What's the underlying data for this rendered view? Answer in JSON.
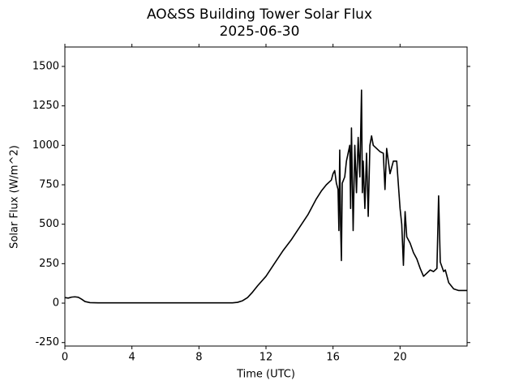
{
  "chart_data": {
    "type": "line",
    "title": "AO&SS Building Tower Solar Flux",
    "subtitle": "2025-06-30",
    "xlabel": "Time (UTC)",
    "ylabel": "Solar Flux (W/m^2)",
    "color": "#000000",
    "xlim": [
      0,
      24
    ],
    "xticks": [
      0,
      4,
      8,
      12,
      16,
      20
    ],
    "ylim": [
      -272,
      1623
    ],
    "yticks": [
      -250,
      0,
      250,
      500,
      750,
      1000,
      1250,
      1500
    ],
    "x": [
      0,
      0.2,
      0.4,
      0.6,
      0.8,
      1.0,
      1.2,
      1.5,
      2,
      4,
      6,
      8,
      10,
      10.3,
      10.6,
      10.9,
      11.2,
      11.5,
      12,
      12.5,
      13,
      13.5,
      14,
      14.5,
      15,
      15.3,
      15.6,
      15.9,
      16.0,
      16.1,
      16.2,
      16.3,
      16.35,
      16.4,
      16.45,
      16.5,
      16.55,
      16.7,
      16.8,
      16.9,
      17.0,
      17.05,
      17.1,
      17.2,
      17.3,
      17.4,
      17.5,
      17.6,
      17.7,
      17.75,
      17.8,
      17.9,
      18.0,
      18.1,
      18.2,
      18.3,
      18.4,
      18.6,
      18.8,
      19.0,
      19.1,
      19.2,
      19.4,
      19.6,
      19.8,
      20.0,
      20.1,
      20.2,
      20.3,
      20.4,
      20.6,
      20.8,
      21.0,
      21.2,
      21.4,
      21.6,
      21.8,
      22.0,
      22.2,
      22.3,
      22.4,
      22.6,
      22.7,
      22.9,
      23.2,
      23.5,
      24
    ],
    "values": [
      35,
      32,
      38,
      40,
      37,
      25,
      10,
      3,
      2,
      2,
      2,
      2,
      2,
      5,
      15,
      35,
      70,
      110,
      170,
      250,
      330,
      400,
      480,
      560,
      660,
      710,
      750,
      780,
      820,
      840,
      760,
      720,
      460,
      970,
      500,
      270,
      760,
      800,
      900,
      950,
      1000,
      600,
      1110,
      460,
      1000,
      700,
      1050,
      800,
      1350,
      700,
      900,
      600,
      950,
      550,
      1000,
      1060,
      1000,
      980,
      960,
      950,
      720,
      980,
      820,
      900,
      900,
      600,
      500,
      240,
      580,
      420,
      380,
      320,
      280,
      220,
      170,
      190,
      210,
      200,
      220,
      680,
      260,
      200,
      210,
      130,
      90,
      80,
      80
    ]
  }
}
